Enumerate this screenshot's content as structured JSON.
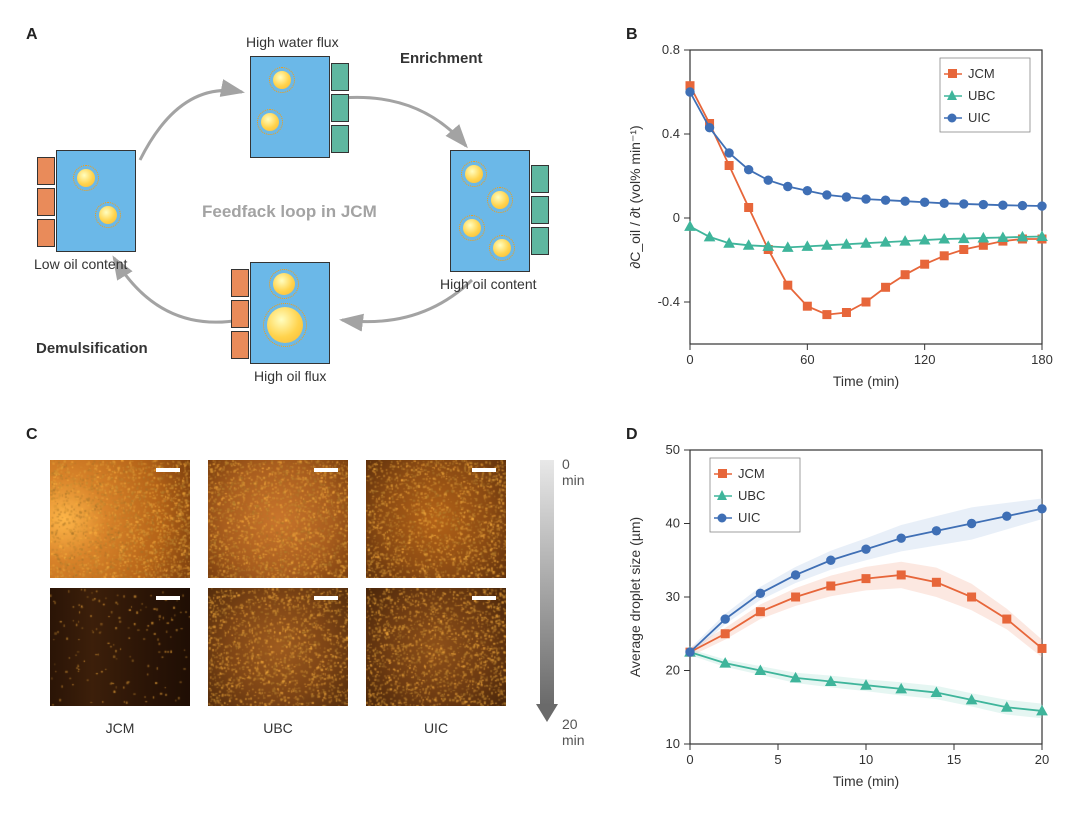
{
  "panelA": {
    "label": "A",
    "center_text": "Feedfack loop in JCM",
    "top_label": "High water flux",
    "top_right_label": "Enrichment",
    "right_label": "High oil content",
    "bottom_label": "High oil flux",
    "bottom_left_label": "Demulsification",
    "left_label": "Low oil content",
    "box_bg": "#6bb8e8",
    "orange_mem": "#e98b5a",
    "teal_mem": "#5fb7a0",
    "arrow_color": "#a3a3a3"
  },
  "panelB": {
    "label": "B",
    "chart": {
      "type": "line-scatter",
      "xlim": [
        0,
        180
      ],
      "ylim": [
        -0.6,
        0.8
      ],
      "xticks": [
        0,
        60,
        120,
        180
      ],
      "yticks": [
        -0.4,
        0.0,
        0.4,
        0.8
      ],
      "xlabel": "Time (min)",
      "ylabel": "∂C_oil / ∂t (vol% min⁻¹)",
      "series": [
        {
          "name": "JCM",
          "marker": "square",
          "color": "#e7663a",
          "x": [
            0,
            10,
            20,
            30,
            40,
            50,
            60,
            70,
            80,
            90,
            100,
            110,
            120,
            130,
            140,
            150,
            160,
            170,
            180
          ],
          "y": [
            0.63,
            0.45,
            0.25,
            0.05,
            -0.15,
            -0.32,
            -0.42,
            -0.46,
            -0.45,
            -0.4,
            -0.33,
            -0.27,
            -0.22,
            -0.18,
            -0.15,
            -0.13,
            -0.11,
            -0.1,
            -0.1
          ]
        },
        {
          "name": "UBC",
          "marker": "triangle",
          "color": "#3fb59b",
          "x": [
            0,
            10,
            20,
            30,
            40,
            50,
            60,
            70,
            80,
            90,
            100,
            110,
            120,
            130,
            140,
            150,
            160,
            170,
            180
          ],
          "y": [
            -0.04,
            -0.09,
            -0.12,
            -0.13,
            -0.135,
            -0.14,
            -0.135,
            -0.13,
            -0.125,
            -0.12,
            -0.115,
            -0.11,
            -0.105,
            -0.1,
            -0.098,
            -0.095,
            -0.093,
            -0.09,
            -0.088
          ]
        },
        {
          "name": "UIC",
          "marker": "circle",
          "color": "#3f6fb5",
          "x": [
            0,
            10,
            20,
            30,
            40,
            50,
            60,
            70,
            80,
            90,
            100,
            110,
            120,
            130,
            140,
            150,
            160,
            170,
            180
          ],
          "y": [
            0.6,
            0.43,
            0.31,
            0.23,
            0.18,
            0.15,
            0.13,
            0.11,
            0.1,
            0.09,
            0.085,
            0.08,
            0.075,
            0.07,
            0.067,
            0.064,
            0.061,
            0.059,
            0.057
          ]
        }
      ]
    }
  },
  "panelC": {
    "label": "C",
    "columns": [
      "JCM",
      "UBC",
      "UIC"
    ],
    "time_top": "0 min",
    "time_bottom": "20 min",
    "micrographs": [
      {
        "id": "jcm-0",
        "bg_css": "radial-gradient(circle at 10% 50%, #ffb74a 0%, #d8832a 30%, #b46318 70%, #7a3e0e 100%)",
        "noise": 0.85
      },
      {
        "id": "ubc-0",
        "bg_css": "radial-gradient(circle at 50% 50%, #c9752c 0%, #a85d1e 60%, #7a3e0e 100%)",
        "noise": 0.75
      },
      {
        "id": "uic-0",
        "bg_css": "radial-gradient(circle at 50% 50%, #b46318 0%, #8a4a13 60%, #5e300c 100%)",
        "noise": 0.7
      },
      {
        "id": "jcm-20",
        "bg_css": "linear-gradient(90deg, #2a1406 0%, #3c1f0a 30%, #2a1406 70%, #1f0e04 100%)",
        "noise": 0.06
      },
      {
        "id": "ubc-20",
        "bg_css": "radial-gradient(circle at 50% 50%, #9e5b1f 0%, #7d4415 55%, #532c0c 100%)",
        "noise": 0.6
      },
      {
        "id": "uic-20",
        "bg_css": "radial-gradient(circle at 50% 50%, #8e5019 0%, #6e3b12 55%, #48250a 100%)",
        "noise": 0.65
      }
    ]
  },
  "panelD": {
    "label": "D",
    "chart": {
      "type": "line-scatter-band",
      "xlim": [
        0,
        20
      ],
      "ylim": [
        10,
        50
      ],
      "xticks": [
        0,
        5,
        10,
        15,
        20
      ],
      "yticks": [
        10,
        20,
        30,
        40,
        50
      ],
      "xlabel": "Time (min)",
      "ylabel": "Average droplet size (µm)",
      "series": [
        {
          "name": "JCM",
          "marker": "square",
          "color": "#e7663a",
          "band": "#f4b49c",
          "x": [
            0,
            2,
            4,
            6,
            8,
            10,
            12,
            14,
            16,
            18,
            20
          ],
          "y": [
            22.5,
            25,
            28,
            30,
            31.5,
            32.5,
            33,
            32,
            30,
            27,
            23
          ],
          "err": [
            0.6,
            0.8,
            1.0,
            1.2,
            1.4,
            1.6,
            1.8,
            2.0,
            1.8,
            1.4,
            1.2
          ]
        },
        {
          "name": "UBC",
          "marker": "triangle",
          "color": "#3fb59b",
          "band": "#a9e0d3",
          "x": [
            0,
            2,
            4,
            6,
            8,
            10,
            12,
            14,
            16,
            18,
            20
          ],
          "y": [
            22.5,
            21,
            20,
            19,
            18.5,
            18,
            17.5,
            17,
            16,
            15,
            14.5
          ],
          "err": [
            0.4,
            0.5,
            0.6,
            0.7,
            0.8,
            0.8,
            0.9,
            0.9,
            0.9,
            1.0,
            1.0
          ]
        },
        {
          "name": "UIC",
          "marker": "circle",
          "color": "#3f6fb5",
          "band": "#b3c9e8",
          "x": [
            0,
            2,
            4,
            6,
            8,
            10,
            12,
            14,
            16,
            18,
            20
          ],
          "y": [
            22.5,
            27,
            30.5,
            33,
            35,
            36.5,
            38,
            39,
            40,
            41,
            42
          ],
          "err": [
            0.5,
            0.7,
            0.9,
            1.1,
            1.3,
            1.5,
            1.8,
            2.0,
            2.2,
            1.8,
            1.4
          ]
        }
      ]
    }
  }
}
